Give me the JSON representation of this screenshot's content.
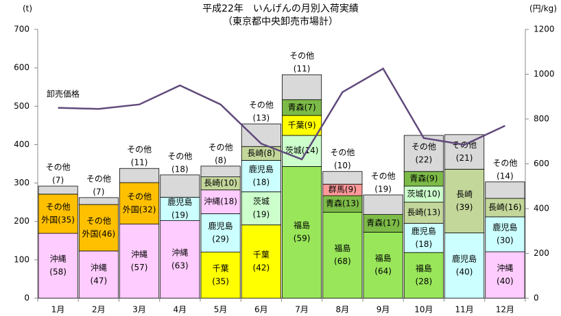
{
  "chart_data": {
    "type": "stacked-bar-line",
    "title": "平成22年　いんげんの月別入荷実績",
    "subtitle": "（東京都中央卸売市場計）",
    "ylabel": "(t)",
    "y2label": "(円/kg)",
    "categories": [
      "1月",
      "2月",
      "3月",
      "4月",
      "5月",
      "6月",
      "7月",
      "8月",
      "9月",
      "10月",
      "11月",
      "12月"
    ],
    "ylim": [
      0,
      700
    ],
    "yticks": [
      0,
      100,
      200,
      300,
      400,
      500,
      600,
      700
    ],
    "y2lim": [
      0,
      1200
    ],
    "y2ticks": [
      0,
      200,
      400,
      600,
      800,
      1000,
      1200
    ],
    "stacks": [
      {
        "segments": [
          {
            "label": [
              "沖縄",
              "(58)"
            ],
            "value": 169,
            "color": "#FFCCFF"
          },
          {
            "label": [
              "その他",
              "外国(35)"
            ],
            "value": 102,
            "color": "#FFC000"
          },
          {
            "label": [
              "その他",
              "(7)"
            ],
            "value": 21,
            "color": "#D9D9D9"
          }
        ]
      },
      {
        "segments": [
          {
            "label": [
              "沖縄",
              "(47)"
            ],
            "value": 123,
            "color": "#FFCCFF"
          },
          {
            "label": [
              "その他",
              "外国(46)"
            ],
            "value": 121,
            "color": "#FFC000"
          },
          {
            "label": [
              "その他",
              "(7)"
            ],
            "value": 18,
            "color": "#D9D9D9"
          }
        ]
      },
      {
        "segments": [
          {
            "label": [
              "沖縄",
              "(57)"
            ],
            "value": 193,
            "color": "#FFCCFF"
          },
          {
            "label": [
              "その他",
              "外国(32)"
            ],
            "value": 108,
            "color": "#FFC000"
          },
          {
            "label": [
              "その他",
              "(11)"
            ],
            "value": 37,
            "color": "#D9D9D9"
          }
        ]
      },
      {
        "segments": [
          {
            "label": [
              "沖縄",
              "(63)"
            ],
            "value": 202,
            "color": "#FFCCFF"
          },
          {
            "label": [
              "鹿児島",
              "(19)"
            ],
            "value": 61,
            "color": "#CCFFFF"
          },
          {
            "label": [
              "その他",
              "(18)"
            ],
            "value": 58,
            "color": "#D9D9D9"
          }
        ]
      },
      {
        "segments": [
          {
            "label": [
              "千葉",
              "(35)"
            ],
            "value": 120,
            "color": "#FFFF00"
          },
          {
            "label": [
              "鹿児島",
              "(29)"
            ],
            "value": 100,
            "color": "#CCFFFF"
          },
          {
            "label": [
              "沖縄(18)"
            ],
            "value": 62,
            "color": "#FFCCFF"
          },
          {
            "label": [
              "長崎(10)"
            ],
            "value": 34,
            "color": "#C4D79B"
          },
          {
            "label": [
              "その他",
              "(8)"
            ],
            "value": 28,
            "color": "#D9D9D9"
          }
        ]
      },
      {
        "segments": [
          {
            "label": [
              "千葉",
              "(42)"
            ],
            "value": 191,
            "color": "#FFFF00"
          },
          {
            "label": [
              "茨城",
              "(19)"
            ],
            "value": 86,
            "color": "#CCFFCC"
          },
          {
            "label": [
              "鹿児島",
              "(18)"
            ],
            "value": 82,
            "color": "#CCFFFF"
          },
          {
            "label": [
              "長崎(8)"
            ],
            "value": 36,
            "color": "#C4D79B"
          },
          {
            "label": [
              "その他",
              "(13)"
            ],
            "value": 59,
            "color": "#D9D9D9"
          }
        ]
      },
      {
        "segments": [
          {
            "label": [
              "福島",
              "(59)"
            ],
            "value": 343,
            "color": "#99E65A"
          },
          {
            "label": [
              "茨城(14)"
            ],
            "value": 81,
            "color": "#CCFFCC"
          },
          {
            "label": [
              "千葉(9)"
            ],
            "value": 52,
            "color": "#FFFF00"
          },
          {
            "label": [
              "青森(7)"
            ],
            "value": 41,
            "color": "#7DBB48"
          },
          {
            "label": [
              "その他",
              "(11)"
            ],
            "value": 65,
            "color": "#D9D9D9"
          }
        ]
      },
      {
        "segments": [
          {
            "label": [
              "福島",
              "(68)"
            ],
            "value": 224,
            "color": "#99E65A"
          },
          {
            "label": [
              "青森(13)"
            ],
            "value": 43,
            "color": "#7DBB48"
          },
          {
            "label": [
              "群馬(9)"
            ],
            "value": 30,
            "color": "#FF9999"
          },
          {
            "label": [
              "その他",
              "(10)"
            ],
            "value": 33,
            "color": "#D9D9D9"
          }
        ]
      },
      {
        "segments": [
          {
            "label": [
              "福島",
              "(64)"
            ],
            "value": 172,
            "color": "#99E65A"
          },
          {
            "label": [
              "青森(17)"
            ],
            "value": 46,
            "color": "#7DBB48"
          },
          {
            "label": [
              "その他",
              "(19)"
            ],
            "value": 51,
            "color": "#D9D9D9"
          }
        ]
      },
      {
        "segments": [
          {
            "label": [
              "福島",
              "(28)"
            ],
            "value": 119,
            "color": "#99E65A"
          },
          {
            "label": [
              "鹿児島",
              "(18)"
            ],
            "value": 76,
            "color": "#CCFFFF"
          },
          {
            "label": [
              "長崎(13)"
            ],
            "value": 55,
            "color": "#C4D79B"
          },
          {
            "label": [
              "茨城(10)"
            ],
            "value": 42,
            "color": "#CCFFCC"
          },
          {
            "label": [
              "青森(9)"
            ],
            "value": 38,
            "color": "#7DBB48"
          },
          {
            "label": [
              "その他",
              "(22)"
            ],
            "value": 94,
            "color": "#D9D9D9"
          }
        ]
      },
      {
        "segments": [
          {
            "label": [
              "鹿児島",
              "(40)"
            ],
            "value": 170,
            "color": "#CCFFFF"
          },
          {
            "label": [
              "長崎",
              "(39)"
            ],
            "value": 166,
            "color": "#C4D79B"
          },
          {
            "label": [
              "その他",
              "(21)"
            ],
            "value": 90,
            "color": "#D9D9D9"
          }
        ]
      },
      {
        "segments": [
          {
            "label": [
              "沖縄",
              "(40)"
            ],
            "value": 121,
            "color": "#FFCCFF"
          },
          {
            "label": [
              "鹿児島",
              "(30)"
            ],
            "value": 91,
            "color": "#CCFFFF"
          },
          {
            "label": [
              "長崎(16)"
            ],
            "value": 48,
            "color": "#C4D79B"
          },
          {
            "label": [
              "その他",
              "(14)"
            ],
            "value": 43,
            "color": "#D9D9D9"
          }
        ]
      }
    ],
    "line": {
      "name": "卸売価格",
      "color": "#604A7B",
      "axis": "y2",
      "values": [
        850,
        845,
        865,
        950,
        865,
        690,
        620,
        920,
        1025,
        715,
        685,
        770
      ]
    }
  }
}
